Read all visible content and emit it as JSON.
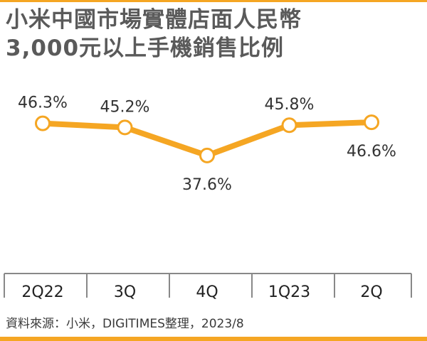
{
  "title_lines": [
    "小米中國市場實體店面人民幣",
    "3,000元以上手機銷售比例"
  ],
  "source": "資料來源：小米，DIGITIMES整理，2023/8",
  "colors": {
    "accent": "#f5a623",
    "text": "#333333",
    "title": "#5a5a5a",
    "axis": "#888888"
  },
  "chart_data": {
    "type": "line",
    "categories": [
      "2Q22",
      "3Q",
      "4Q",
      "1Q23",
      "2Q"
    ],
    "series": [
      {
        "values": [
          46.3,
          45.2,
          37.6,
          45.8,
          46.6
        ]
      }
    ],
    "data_labels": [
      "46.3%",
      "45.2%",
      "37.6%",
      "45.8%",
      "46.6%"
    ],
    "unit": "%",
    "label_positions": [
      "above",
      "above",
      "below",
      "above",
      "below"
    ],
    "grid": false,
    "legend": "none"
  }
}
